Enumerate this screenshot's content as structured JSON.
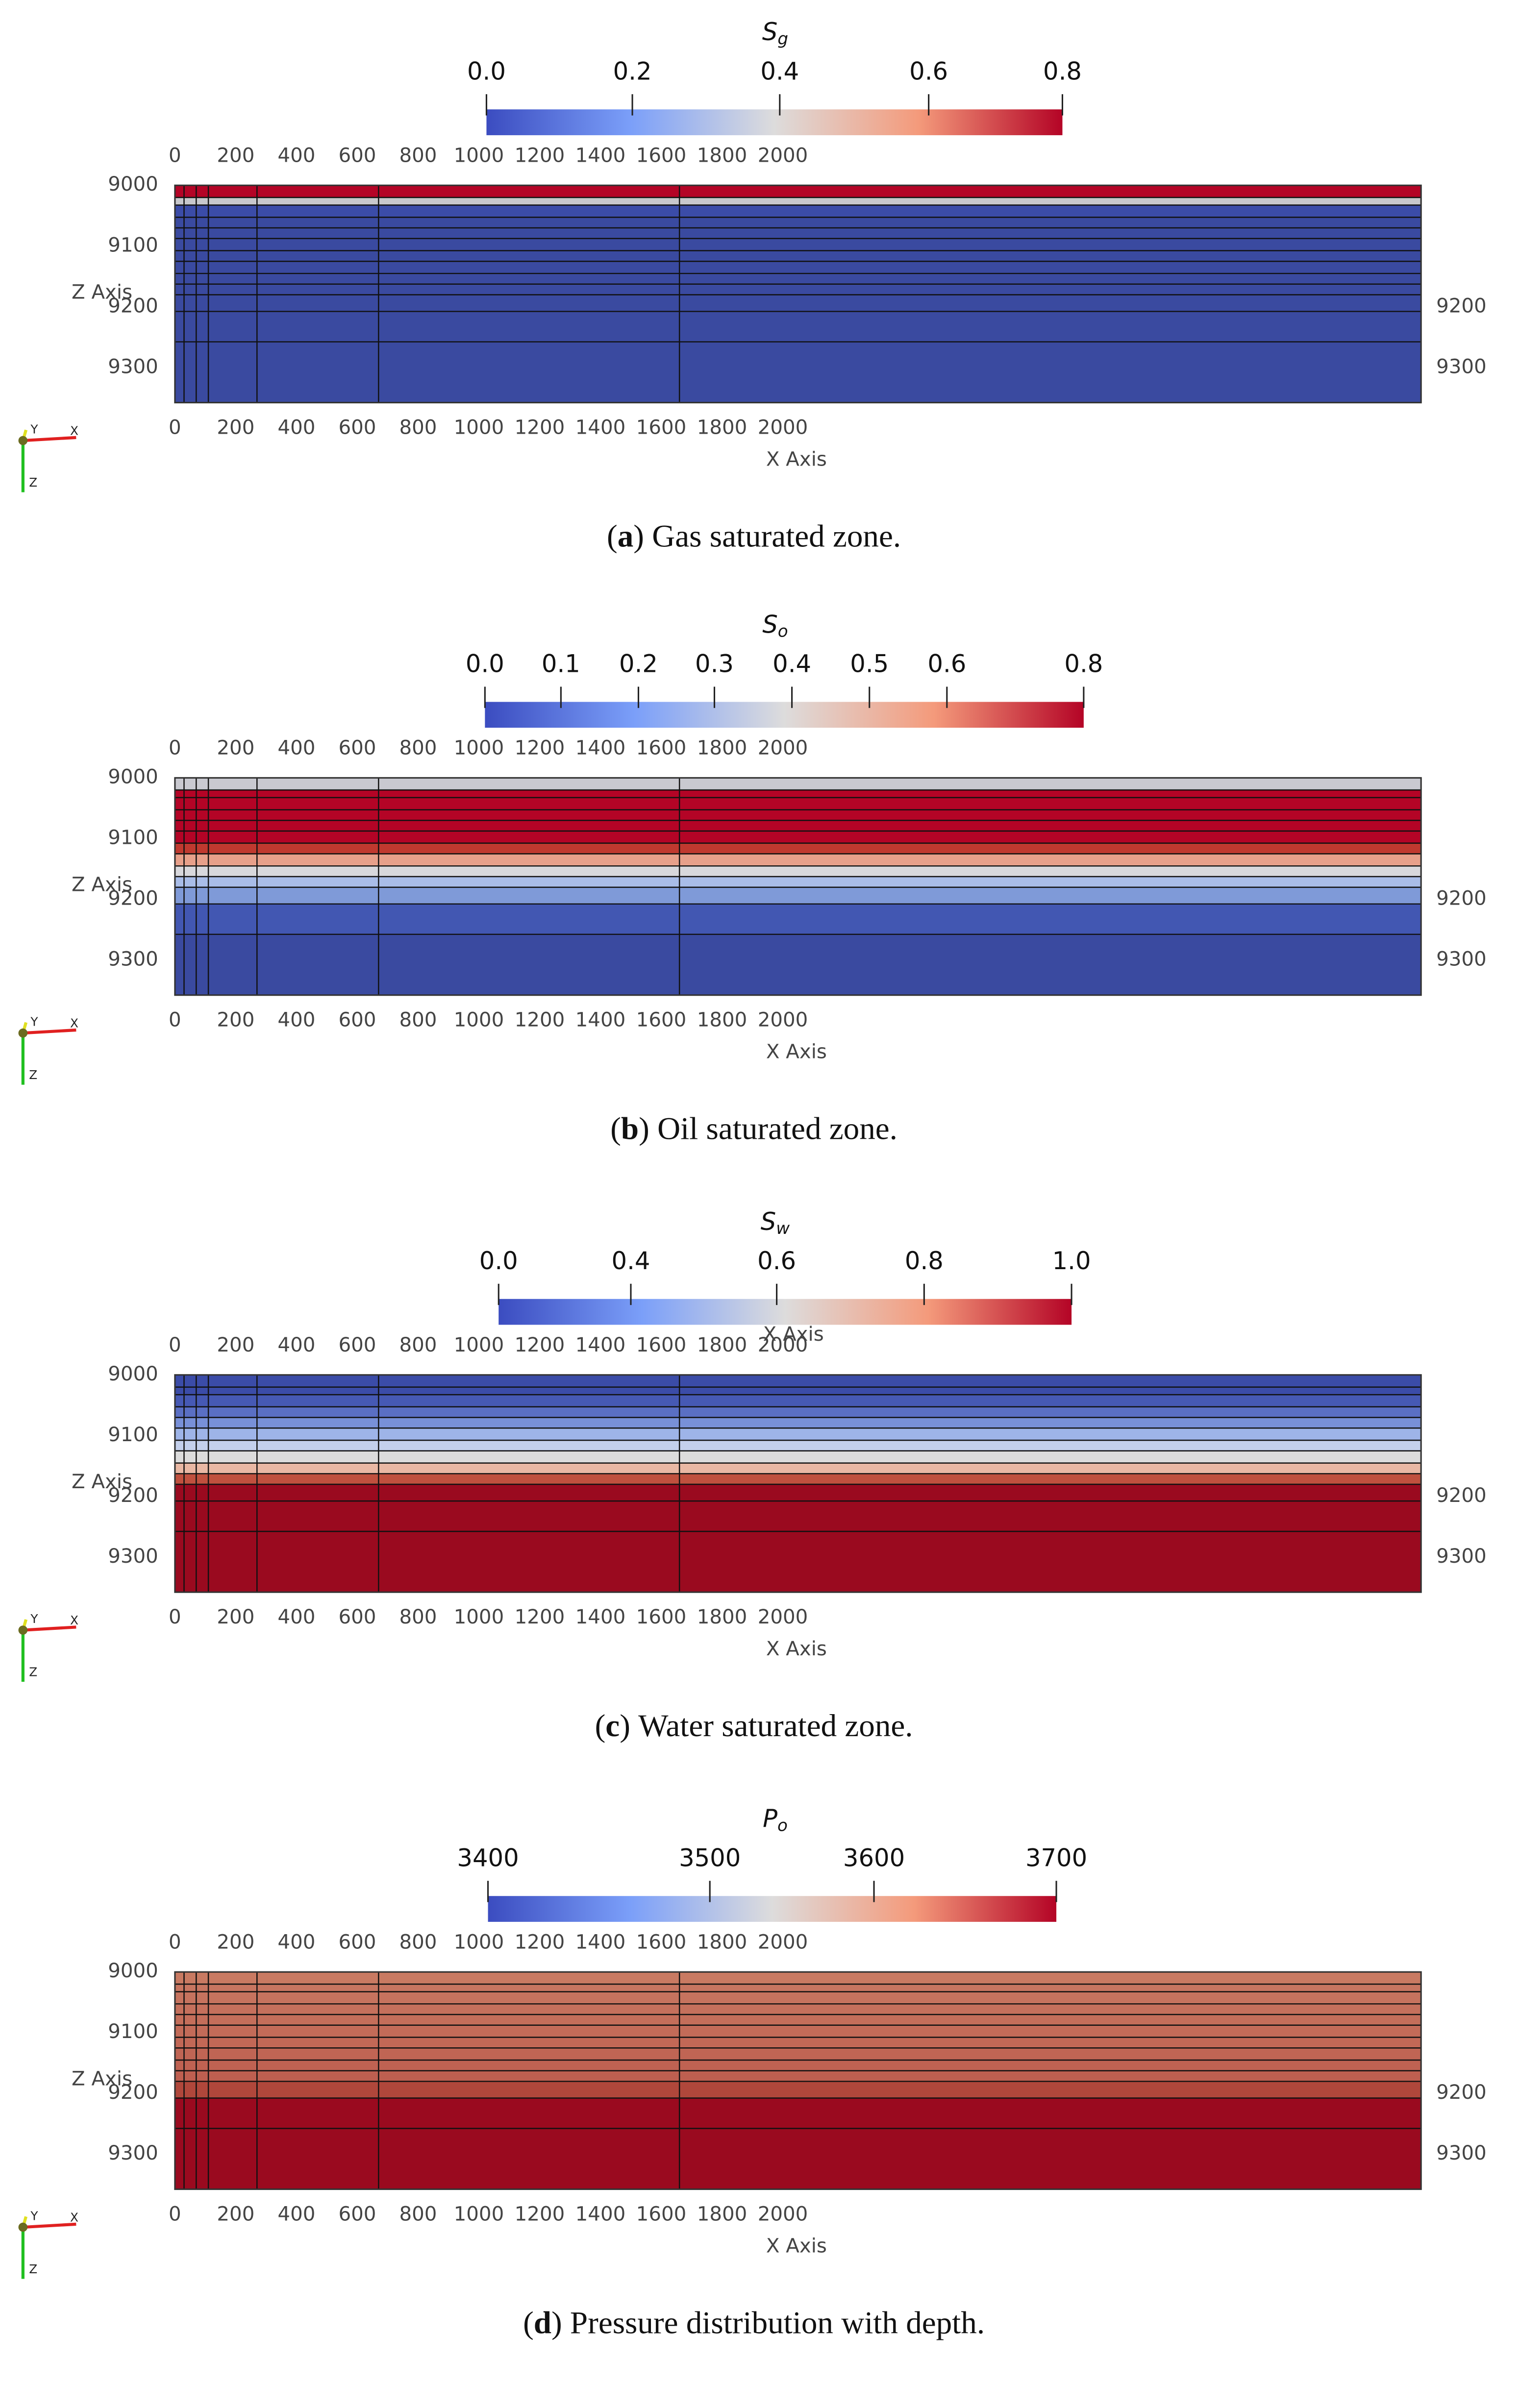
{
  "panels": [
    {
      "colorbar": {
        "symbol": "S",
        "subscript": "g",
        "ticks": [
          "0.0",
          "0.2",
          "0.4",
          "0.6",
          "0.8"
        ]
      },
      "x_ticks_top": [
        "0",
        "200",
        "400",
        "600",
        "800",
        "1000",
        "1200",
        "1400",
        "1600",
        "1800",
        "2000"
      ],
      "x_ticks_bottom": [
        "0",
        "200",
        "400",
        "600",
        "800",
        "1000",
        "1200",
        "1400",
        "1600",
        "1800",
        "2000"
      ],
      "z_ticks_left": [
        "9000",
        "9100",
        "9200",
        "9300"
      ],
      "z_ticks_right": [
        "9200",
        "9300"
      ],
      "z_axis_label": "Z Axis",
      "x_axis_label": "X Axis",
      "triad": [
        "Y",
        "X",
        "Z"
      ],
      "caption": {
        "label": "a",
        "text": "Gas saturated zone."
      }
    },
    {
      "colorbar": {
        "symbol": "S",
        "subscript": "o",
        "ticks": [
          "0.0",
          "0.1",
          "0.2",
          "0.3",
          "0.4",
          "0.5",
          "0.6",
          "0.8"
        ]
      },
      "x_ticks_top": [
        "0",
        "200",
        "400",
        "600",
        "800",
        "1000",
        "1200",
        "1400",
        "1600",
        "1800",
        "2000"
      ],
      "x_ticks_bottom": [
        "0",
        "200",
        "400",
        "600",
        "800",
        "1000",
        "1200",
        "1400",
        "1600",
        "1800",
        "2000"
      ],
      "z_ticks_left": [
        "9000",
        "9100",
        "9200",
        "9300"
      ],
      "z_ticks_right": [
        "9200",
        "9300"
      ],
      "z_axis_label": "Z Axis",
      "x_axis_label": "X Axis",
      "triad": [
        "Y",
        "X",
        "Z"
      ],
      "caption": {
        "label": "b",
        "text": "Oil saturated zone."
      }
    },
    {
      "colorbar": {
        "symbol": "S",
        "subscript": "w",
        "ticks": [
          "0.0",
          "0.4",
          "0.6",
          "0.8",
          "1.0"
        ],
        "overlay_label": "X Axis"
      },
      "x_ticks_top": [
        "0",
        "200",
        "400",
        "600",
        "800",
        "1000",
        "1200",
        "1400",
        "1600",
        "1800",
        "2000"
      ],
      "x_ticks_bottom": [
        "0",
        "200",
        "400",
        "600",
        "800",
        "1000",
        "1200",
        "1400",
        "1600",
        "1800",
        "2000"
      ],
      "z_ticks_left": [
        "9000",
        "9100",
        "9200",
        "9300"
      ],
      "z_ticks_right": [
        "9200",
        "9300"
      ],
      "z_axis_label": "Z Axis",
      "x_axis_label": "X Axis",
      "triad": [
        "Y",
        "X",
        "Z"
      ],
      "caption": {
        "label": "c",
        "text": "Water saturated zone."
      }
    },
    {
      "colorbar": {
        "symbol": "P",
        "subscript": "o",
        "ticks": [
          "3400",
          "3500",
          "3600",
          "3700"
        ]
      },
      "x_ticks_top": [
        "0",
        "200",
        "400",
        "600",
        "800",
        "1000",
        "1200",
        "1400",
        "1600",
        "1800",
        "2000"
      ],
      "x_ticks_bottom": [
        "0",
        "200",
        "400",
        "600",
        "800",
        "1000",
        "1200",
        "1400",
        "1600",
        "1800",
        "2000"
      ],
      "z_ticks_left": [
        "9000",
        "9100",
        "9200",
        "9300"
      ],
      "z_ticks_right": [
        "9200",
        "9300"
      ],
      "z_axis_label": "Z Axis",
      "x_axis_label": "X Axis",
      "triad": [
        "Y",
        "X",
        "Z"
      ],
      "caption": {
        "label": "d",
        "text": "Pressure distribution with depth."
      }
    }
  ]
}
